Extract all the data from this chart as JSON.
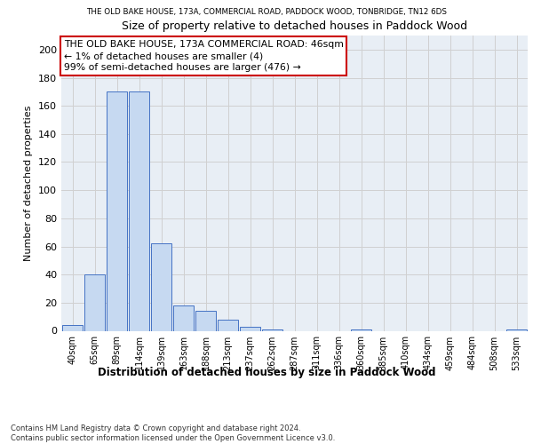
{
  "title_top": "THE OLD BAKE HOUSE, 173A, COMMERCIAL ROAD, PADDOCK WOOD, TONBRIDGE, TN12 6DS",
  "title": "Size of property relative to detached houses in Paddock Wood",
  "xlabel": "Distribution of detached houses by size in Paddock Wood",
  "ylabel": "Number of detached properties",
  "bar_color": "#c6d9f1",
  "bar_edge_color": "#4472c4",
  "categories": [
    "40sqm",
    "65sqm",
    "89sqm",
    "114sqm",
    "139sqm",
    "163sqm",
    "188sqm",
    "213sqm",
    "237sqm",
    "262sqm",
    "287sqm",
    "311sqm",
    "336sqm",
    "360sqm",
    "385sqm",
    "410sqm",
    "434sqm",
    "459sqm",
    "484sqm",
    "508sqm",
    "533sqm"
  ],
  "values": [
    4,
    40,
    170,
    170,
    62,
    18,
    14,
    8,
    3,
    1,
    0,
    0,
    0,
    1,
    0,
    0,
    0,
    0,
    0,
    0,
    1
  ],
  "ylim": [
    0,
    210
  ],
  "yticks": [
    0,
    20,
    40,
    60,
    80,
    100,
    120,
    140,
    160,
    180,
    200
  ],
  "annotation_box_text": "THE OLD BAKE HOUSE, 173A COMMERCIAL ROAD: 46sqm\n← 1% of detached houses are smaller (4)\n99% of semi-detached houses are larger (476) →",
  "annotation_box_color": "#ffffff",
  "annotation_box_edge_color": "#cc0000",
  "footnote": "Contains HM Land Registry data © Crown copyright and database right 2024.\nContains public sector information licensed under the Open Government Licence v3.0.",
  "grid_color": "#d0d0d0",
  "background_color": "#e8eef5",
  "fig_bg": "#ffffff"
}
